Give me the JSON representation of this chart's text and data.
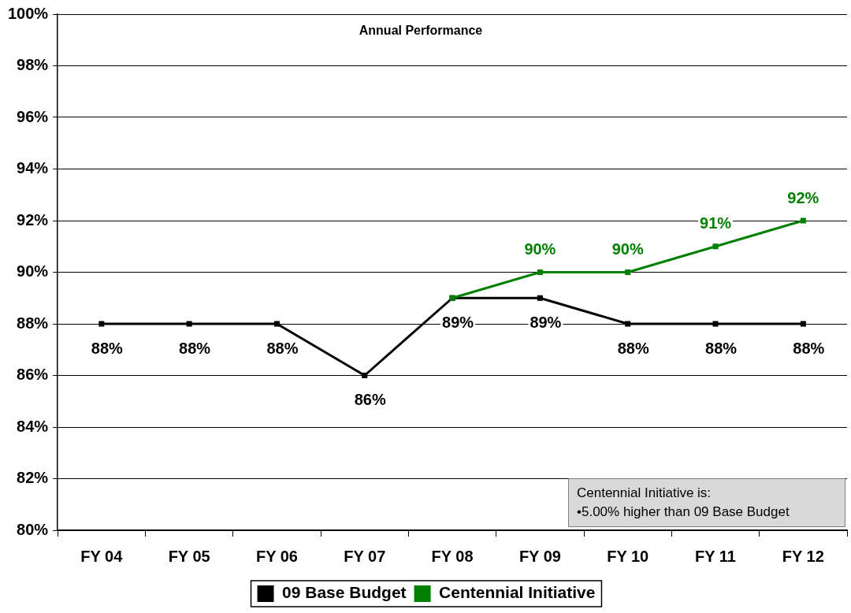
{
  "chart_data": {
    "type": "line",
    "title": "Annual Performance",
    "categories": [
      "FY 04",
      "FY 05",
      "FY 06",
      "FY 07",
      "FY 08",
      "FY 09",
      "FY 10",
      "FY 11",
      "FY 12"
    ],
    "series": [
      {
        "name": "09 Base Budget",
        "color": "#000000",
        "values": [
          88,
          88,
          88,
          86,
          89,
          89,
          88,
          88,
          88
        ],
        "value_labels": [
          "88%",
          "88%",
          "88%",
          "86%",
          "89%",
          "89%",
          "88%",
          "88%",
          "88%"
        ]
      },
      {
        "name": "Centennial Initiative",
        "color": "#008000",
        "values": [
          null,
          null,
          null,
          null,
          89,
          90,
          90,
          91,
          92
        ],
        "value_labels": [
          null,
          null,
          null,
          null,
          null,
          "90%",
          "90%",
          "91%",
          "92%"
        ]
      }
    ],
    "ylim": [
      80,
      100
    ],
    "yticks": [
      {
        "value": 80,
        "label": "80%"
      },
      {
        "value": 82,
        "label": "82%"
      },
      {
        "value": 84,
        "label": "84%"
      },
      {
        "value": 86,
        "label": "86%"
      },
      {
        "value": 88,
        "label": "88%"
      },
      {
        "value": 90,
        "label": "90%"
      },
      {
        "value": 92,
        "label": "92%"
      },
      {
        "value": 94,
        "label": "94%"
      },
      {
        "value": 96,
        "label": "96%"
      },
      {
        "value": 98,
        "label": "98%"
      },
      {
        "value": 100,
        "label": "100%"
      }
    ],
    "grid": "y",
    "legend": "bottom",
    "marker": "square",
    "annotations": [
      "Centennial Initiative is:",
      "•5.00% higher than 09 Base Budget"
    ]
  }
}
